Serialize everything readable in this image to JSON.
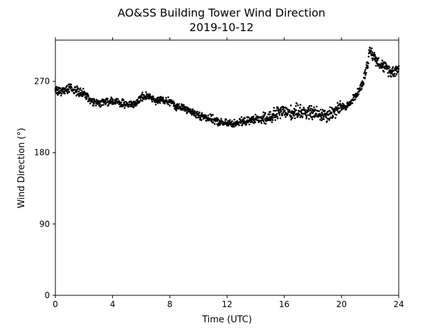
{
  "chart_data": {
    "type": "scatter",
    "title": "AO&SS Building Tower Wind Direction",
    "subtitle": "2019-10-12",
    "xlabel": "Time (UTC)",
    "ylabel": "Wind Direction (°)",
    "xlim": [
      0,
      24
    ],
    "ylim": [
      0,
      322
    ],
    "xticks": [
      0,
      4,
      8,
      12,
      16,
      20,
      24
    ],
    "yticks": [
      0,
      90,
      180,
      270
    ],
    "grid": false,
    "marker_color": "#000000",
    "series": [
      {
        "x": [
          0.0,
          0.5,
          1.0,
          1.5,
          2.0,
          2.5,
          3.0,
          3.5,
          4.0,
          4.5,
          5.0,
          5.5,
          6.0,
          6.5,
          7.0,
          7.5,
          8.0,
          8.5,
          9.0,
          9.5,
          10.0,
          10.5,
          11.0,
          11.5,
          12.0,
          12.5,
          13.0,
          13.5,
          14.0,
          14.5,
          15.0,
          15.5,
          16.0,
          16.5,
          17.0,
          17.5,
          18.0,
          18.5,
          19.0,
          19.5,
          20.0,
          20.5,
          21.0,
          21.5,
          22.0,
          22.5,
          23.0,
          23.5,
          24.0
        ],
        "y": [
          258,
          257,
          262,
          258,
          255,
          245,
          242,
          244,
          245,
          243,
          240,
          241,
          250,
          252,
          246,
          246,
          245,
          238,
          236,
          232,
          227,
          225,
          222,
          218,
          217,
          217,
          219,
          220,
          223,
          221,
          225,
          229,
          232,
          230,
          233,
          231,
          230,
          229,
          228,
          232,
          237,
          240,
          252,
          268,
          308,
          296,
          288,
          282,
          286
        ]
      }
    ]
  }
}
